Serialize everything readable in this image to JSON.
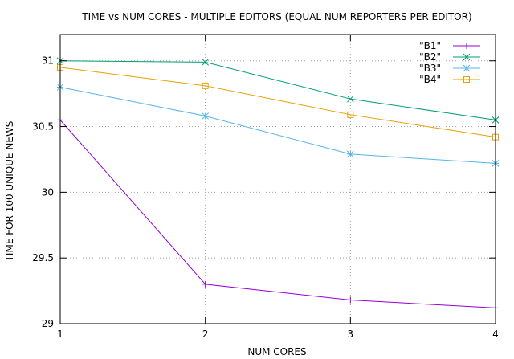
{
  "chart_data": {
    "type": "line",
    "title": "TIME vs NUM CORES - MULTIPLE EDITORS (EQUAL NUM REPORTERS PER EDITOR)",
    "xlabel": "NUM CORES",
    "ylabel": "TIME FOR 100 UNIQUE NEWS",
    "xlim": [
      1,
      4
    ],
    "ylim": [
      29,
      31.2
    ],
    "x_ticks": [
      1,
      2,
      3,
      4
    ],
    "y_ticks": [
      29,
      29.5,
      30,
      30.5,
      31
    ],
    "grid": true,
    "legend_position": "top-right",
    "x": [
      1,
      2,
      3,
      4
    ],
    "series": [
      {
        "name": "\"B1\"",
        "color": "#9400d3",
        "marker": "plus",
        "values": [
          30.55,
          29.3,
          29.18,
          29.12
        ]
      },
      {
        "name": "\"B2\"",
        "color": "#009e73",
        "marker": "cross",
        "values": [
          31.0,
          30.99,
          30.71,
          30.55
        ]
      },
      {
        "name": "\"B3\"",
        "color": "#56b4e9",
        "marker": "star",
        "values": [
          30.8,
          30.58,
          30.29,
          30.22
        ]
      },
      {
        "name": "\"B4\"",
        "color": "#e69f00",
        "marker": "square",
        "values": [
          30.95,
          30.81,
          30.59,
          30.42
        ]
      }
    ]
  }
}
